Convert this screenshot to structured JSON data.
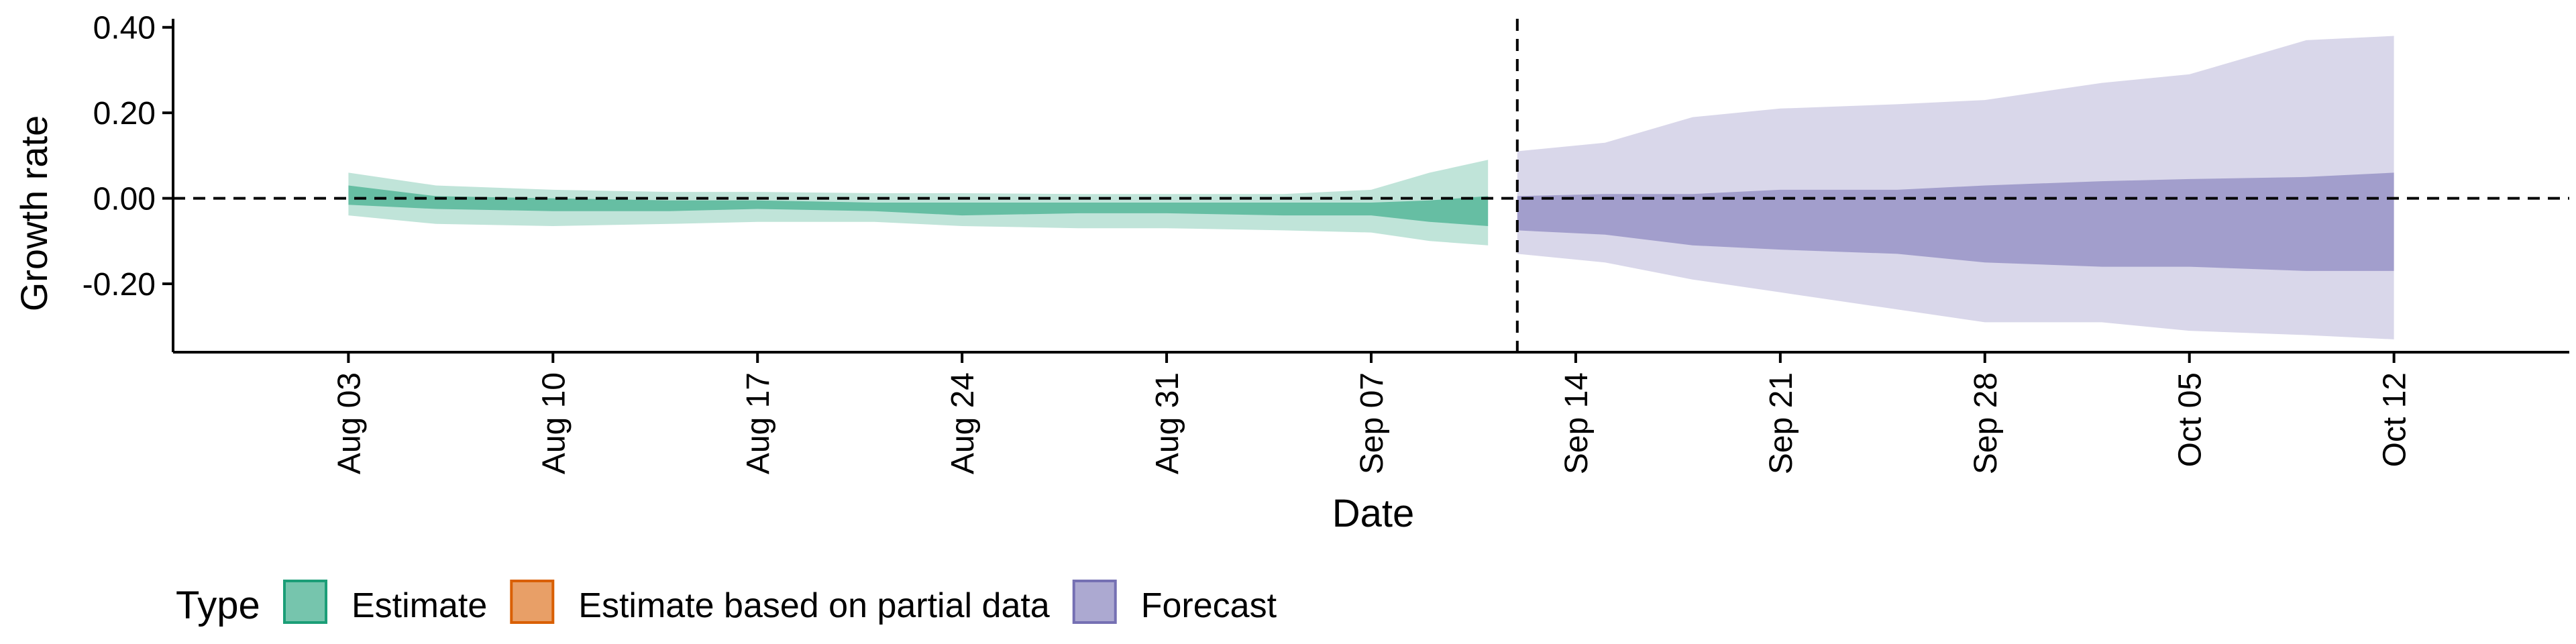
{
  "chart_data": {
    "type": "area",
    "ylabel": "Growth rate",
    "xlabel": "Date",
    "ylim": [
      -0.36,
      0.42
    ],
    "yticks": [
      {
        "value": 0.4,
        "label": "0.40"
      },
      {
        "value": 0.2,
        "label": "0.20"
      },
      {
        "value": 0.0,
        "label": "0.00"
      },
      {
        "value": -0.2,
        "label": "-0.20"
      }
    ],
    "xrange": [
      "2020-07-28",
      "2020-10-18"
    ],
    "xticks": [
      {
        "date": "2020-08-03",
        "label": "Aug 03"
      },
      {
        "date": "2020-08-10",
        "label": "Aug 10"
      },
      {
        "date": "2020-08-17",
        "label": "Aug 17"
      },
      {
        "date": "2020-08-24",
        "label": "Aug 24"
      },
      {
        "date": "2020-08-31",
        "label": "Aug 31"
      },
      {
        "date": "2020-09-07",
        "label": "Sep 07"
      },
      {
        "date": "2020-09-14",
        "label": "Sep 14"
      },
      {
        "date": "2020-09-21",
        "label": "Sep 21"
      },
      {
        "date": "2020-09-28",
        "label": "Sep 28"
      },
      {
        "date": "2020-10-05",
        "label": "Oct 05"
      },
      {
        "date": "2020-10-12",
        "label": "Oct 12"
      }
    ],
    "vline": "2020-09-12",
    "hline": 0,
    "grid": false,
    "legend": {
      "title": "Type",
      "placement": "bottom-left",
      "entries": [
        {
          "label": "Estimate",
          "color": "#1b9e77"
        },
        {
          "label": "Estimate based on partial data",
          "color": "#d95f02"
        },
        {
          "label": "Forecast",
          "color": "#7570b3"
        }
      ]
    },
    "series": [
      {
        "type_label": "Estimate",
        "color": "#1b9e77",
        "points": [
          {
            "date": "2020-08-03",
            "outer": [
              -0.04,
              0.06
            ],
            "inner": [
              -0.015,
              0.03
            ]
          },
          {
            "date": "2020-08-06",
            "outer": [
              -0.06,
              0.03
            ],
            "inner": [
              -0.025,
              0.005
            ]
          },
          {
            "date": "2020-08-10",
            "outer": [
              -0.065,
              0.02
            ],
            "inner": [
              -0.03,
              0.0
            ]
          },
          {
            "date": "2020-08-14",
            "outer": [
              -0.06,
              0.015
            ],
            "inner": [
              -0.03,
              -0.005
            ]
          },
          {
            "date": "2020-08-17",
            "outer": [
              -0.055,
              0.015
            ],
            "inner": [
              -0.025,
              -0.005
            ]
          },
          {
            "date": "2020-08-21",
            "outer": [
              -0.055,
              0.012
            ],
            "inner": [
              -0.03,
              -0.01
            ]
          },
          {
            "date": "2020-08-24",
            "outer": [
              -0.065,
              0.012
            ],
            "inner": [
              -0.04,
              -0.01
            ]
          },
          {
            "date": "2020-08-28",
            "outer": [
              -0.07,
              0.01
            ],
            "inner": [
              -0.035,
              -0.01
            ]
          },
          {
            "date": "2020-08-31",
            "outer": [
              -0.07,
              0.01
            ],
            "inner": [
              -0.035,
              -0.01
            ]
          },
          {
            "date": "2020-09-04",
            "outer": [
              -0.075,
              0.01
            ],
            "inner": [
              -0.04,
              -0.01
            ]
          },
          {
            "date": "2020-09-07",
            "outer": [
              -0.08,
              0.02
            ],
            "inner": [
              -0.04,
              -0.01
            ]
          },
          {
            "date": "2020-09-09",
            "outer": [
              -0.1,
              0.06
            ],
            "inner": [
              -0.055,
              -0.005
            ]
          },
          {
            "date": "2020-09-11",
            "outer": [
              -0.11,
              0.09
            ],
            "inner": [
              -0.065,
              0.005
            ]
          }
        ]
      },
      {
        "type_label": "Forecast",
        "color": "#7570b3",
        "points": [
          {
            "date": "2020-09-12",
            "outer": [
              -0.13,
              0.11
            ],
            "inner": [
              -0.075,
              0.005
            ]
          },
          {
            "date": "2020-09-15",
            "outer": [
              -0.15,
              0.13
            ],
            "inner": [
              -0.085,
              0.01
            ]
          },
          {
            "date": "2020-09-18",
            "outer": [
              -0.19,
              0.19
            ],
            "inner": [
              -0.11,
              0.01
            ]
          },
          {
            "date": "2020-09-21",
            "outer": [
              -0.22,
              0.21
            ],
            "inner": [
              -0.12,
              0.02
            ]
          },
          {
            "date": "2020-09-25",
            "outer": [
              -0.26,
              0.22
            ],
            "inner": [
              -0.13,
              0.02
            ]
          },
          {
            "date": "2020-09-28",
            "outer": [
              -0.29,
              0.23
            ],
            "inner": [
              -0.15,
              0.03
            ]
          },
          {
            "date": "2020-10-02",
            "outer": [
              -0.29,
              0.27
            ],
            "inner": [
              -0.16,
              0.04
            ]
          },
          {
            "date": "2020-10-05",
            "outer": [
              -0.31,
              0.29
            ],
            "inner": [
              -0.16,
              0.045
            ]
          },
          {
            "date": "2020-10-09",
            "outer": [
              -0.32,
              0.37
            ],
            "inner": [
              -0.17,
              0.05
            ]
          },
          {
            "date": "2020-10-12",
            "outer": [
              -0.33,
              0.38
            ],
            "inner": [
              -0.17,
              0.06
            ]
          }
        ]
      }
    ]
  }
}
